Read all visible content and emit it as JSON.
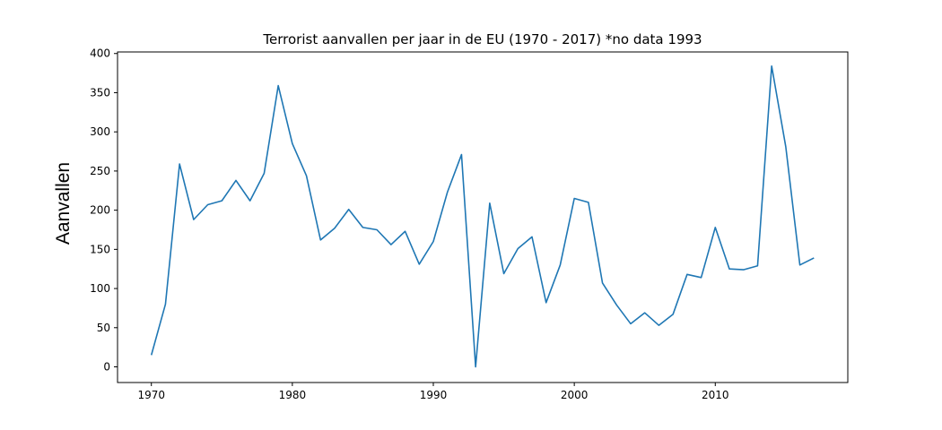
{
  "chart_data": {
    "type": "line",
    "title": "Terrorist aanvallen per jaar in de EU (1970 - 2017) *no data 1993",
    "xlabel": "",
    "ylabel": "Aanvallen",
    "xlim": [
      1967.6,
      2019.4
    ],
    "ylim": [
      -20,
      402
    ],
    "xticks": [
      1970,
      1980,
      1990,
      2000,
      2010
    ],
    "yticks": [
      0,
      50,
      100,
      150,
      200,
      250,
      300,
      350,
      400
    ],
    "grid": false,
    "legend": "none",
    "line_color": "#1f77b4",
    "series": [
      {
        "x": [
          1970,
          1971,
          1972,
          1973,
          1974,
          1975,
          1976,
          1977,
          1978,
          1979,
          1980,
          1981,
          1982,
          1983,
          1984,
          1985,
          1986,
          1987,
          1988,
          1989,
          1990,
          1991,
          1992,
          1993,
          1994,
          1995,
          1996,
          1997,
          1998,
          1999,
          2000,
          2001,
          2002,
          2003,
          2004,
          2005,
          2006,
          2007,
          2008,
          2009,
          2010,
          2011,
          2012,
          2013,
          2014,
          2015,
          2016,
          2017
        ],
        "values": [
          15,
          80,
          259,
          188,
          207,
          212,
          238,
          212,
          247,
          359,
          285,
          244,
          162,
          177,
          201,
          178,
          175,
          156,
          173,
          131,
          160,
          223,
          271,
          0,
          209,
          119,
          151,
          166,
          82,
          130,
          215,
          210,
          107,
          79,
          55,
          69,
          53,
          67,
          118,
          114,
          178,
          125,
          124,
          129,
          384,
          281,
          130,
          139
        ]
      }
    ]
  }
}
